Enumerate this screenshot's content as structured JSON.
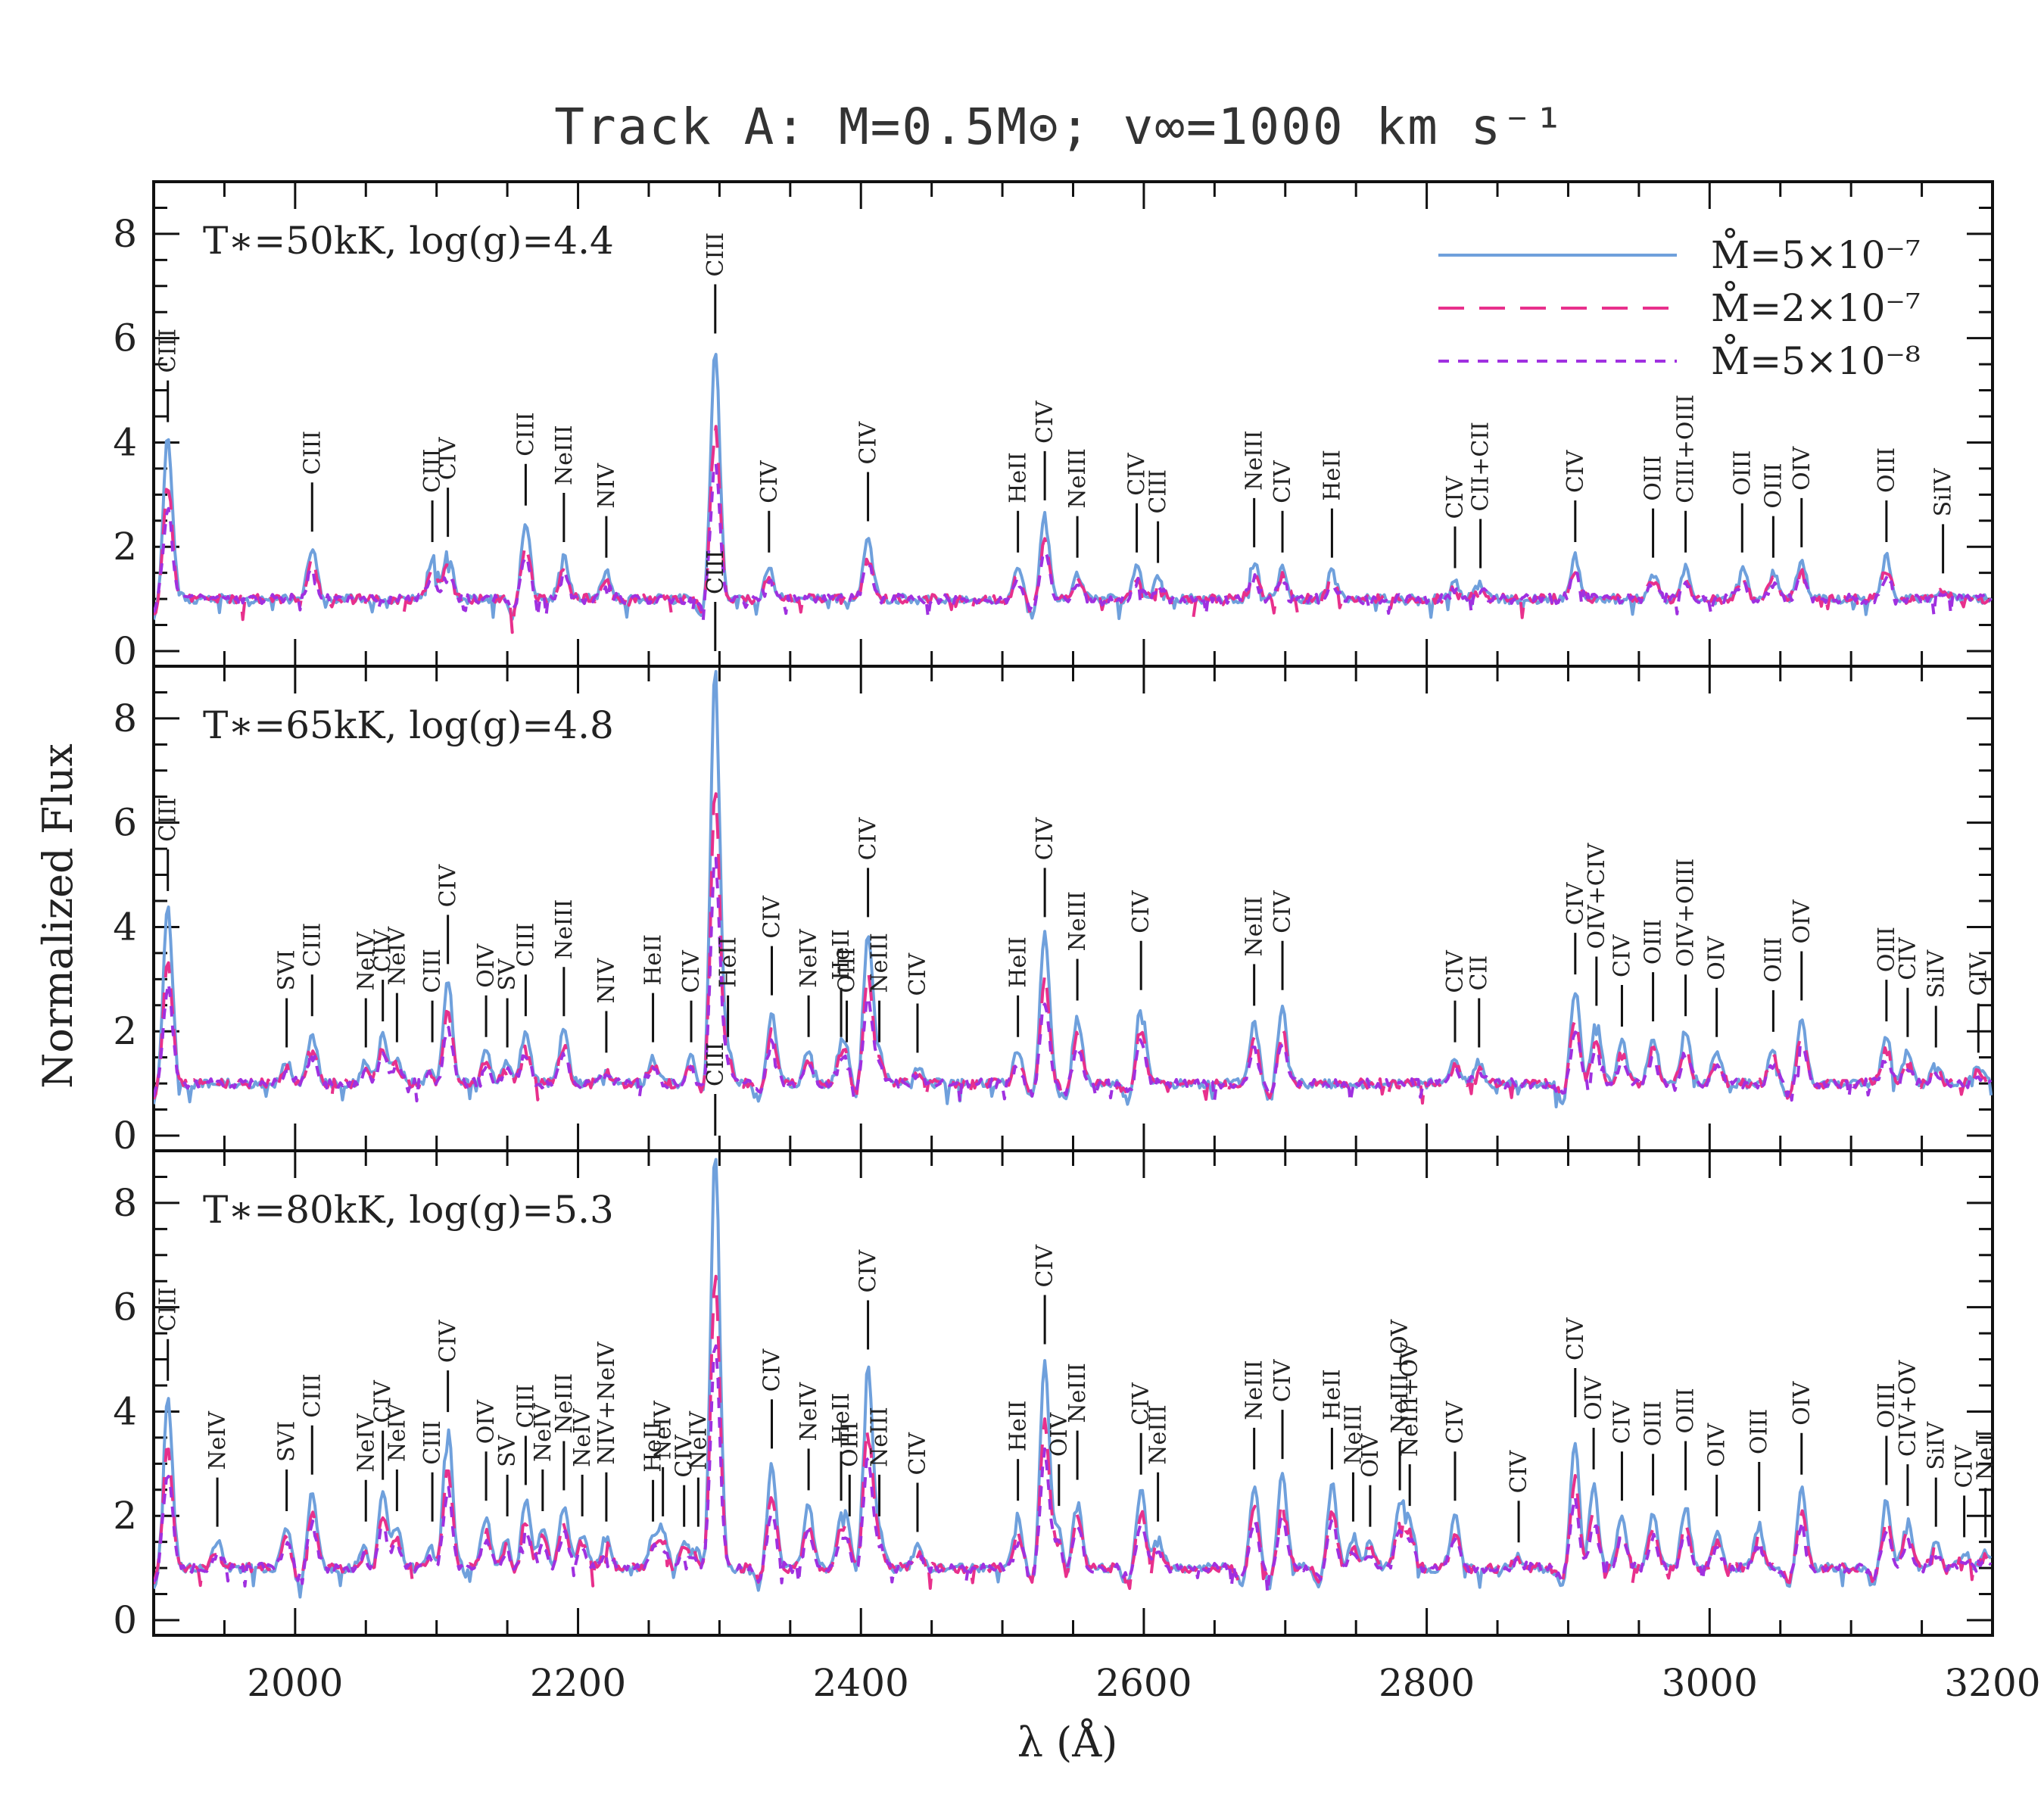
{
  "chart_data": {
    "type": "line",
    "title": "Track A: M=0.5M⊙; v∞=1000 km s⁻¹",
    "xlabel": "λ (Å)",
    "ylabel": "Normalized Flux",
    "xlim": [
      1900,
      3200
    ],
    "x_ticks": [
      "2000",
      "2200",
      "2400",
      "2600",
      "2800",
      "3000",
      "3200"
    ],
    "y_ticks": [
      "0",
      "2",
      "4",
      "6",
      "8"
    ],
    "legend": {
      "placement": "top-right",
      "entries": [
        {
          "label": "M̊=5×10⁻⁷",
          "color": "#6fa0dc",
          "dash": "solid"
        },
        {
          "label": "M̊=2×10⁻⁷",
          "color": "#e8308c",
          "dash": "long-dash"
        },
        {
          "label": "M̊=5×10⁻⁸",
          "color": "#a030e0",
          "dash": "short-dash"
        }
      ]
    },
    "panels": [
      {
        "label": "T∗=50kK, log(g)=4.4",
        "ylim": [
          0,
          9
        ],
        "continuum": 1.0,
        "lines": [
          {
            "name": "CIII",
            "x": 1910,
            "peak": 4.1
          },
          {
            "name": "CIII",
            "x": 2012,
            "peak": 2.0
          },
          {
            "name": "CIII",
            "x": 2097,
            "peak": 1.8
          },
          {
            "name": "CIV",
            "x": 2108,
            "peak": 1.9
          },
          {
            "name": "CIII",
            "x": 2163,
            "peak": 2.5
          },
          {
            "name": "NeIII",
            "x": 2190,
            "peak": 1.8
          },
          {
            "name": "NIV",
            "x": 2220,
            "peak": 1.5
          },
          {
            "name": "CIII",
            "x": 2297,
            "peak": 5.8
          },
          {
            "name": "CIV",
            "x": 2335,
            "peak": 1.6
          },
          {
            "name": "CIV",
            "x": 2405,
            "peak": 2.2
          },
          {
            "name": "HeII",
            "x": 2511,
            "peak": 1.6
          },
          {
            "name": "CIV",
            "x": 2530,
            "peak": 2.6
          },
          {
            "name": "NeIII",
            "x": 2553,
            "peak": 1.5
          },
          {
            "name": "CIV",
            "x": 2595,
            "peak": 1.6
          },
          {
            "name": "CIII",
            "x": 2610,
            "peak": 1.4
          },
          {
            "name": "NeIII",
            "x": 2678,
            "peak": 1.7
          },
          {
            "name": "CIV",
            "x": 2698,
            "peak": 1.6
          },
          {
            "name": "HeII",
            "x": 2733,
            "peak": 1.5
          },
          {
            "name": "CIV",
            "x": 2820,
            "peak": 1.3
          },
          {
            "name": "CII+CII",
            "x": 2838,
            "peak": 1.3
          },
          {
            "name": "CIV",
            "x": 2905,
            "peak": 1.8
          },
          {
            "name": "OIII",
            "x": 2960,
            "peak": 1.5
          },
          {
            "name": "CIII+OIII",
            "x": 2983,
            "peak": 1.6
          },
          {
            "name": "OIII",
            "x": 3023,
            "peak": 1.6
          },
          {
            "name": "OIII",
            "x": 3045,
            "peak": 1.5
          },
          {
            "name": "OIV",
            "x": 3065,
            "peak": 1.7
          },
          {
            "name": "OIII",
            "x": 3125,
            "peak": 1.8
          },
          {
            "name": "SiIV",
            "x": 3165,
            "peak": 1.2
          }
        ]
      },
      {
        "label": "T∗=65kK, log(g)=4.8",
        "ylim": [
          0,
          9
        ],
        "continuum": 1.0,
        "lines": [
          {
            "name": "CIII",
            "x": 1910,
            "peak": 4.4
          },
          {
            "name": "SVI",
            "x": 1994,
            "peak": 1.4
          },
          {
            "name": "CIII",
            "x": 2012,
            "peak": 2.0
          },
          {
            "name": "NeIV",
            "x": 2050,
            "peak": 1.4
          },
          {
            "name": "CIV",
            "x": 2062,
            "peak": 1.9
          },
          {
            "name": "NeIV",
            "x": 2072,
            "peak": 1.5
          },
          {
            "name": "CIII",
            "x": 2097,
            "peak": 1.5
          },
          {
            "name": "CIV",
            "x": 2108,
            "peak": 3.0
          },
          {
            "name": "OIV",
            "x": 2135,
            "peak": 1.6
          },
          {
            "name": "SV",
            "x": 2150,
            "peak": 1.4
          },
          {
            "name": "CIII",
            "x": 2163,
            "peak": 2.0
          },
          {
            "name": "NeIII",
            "x": 2190,
            "peak": 2.0
          },
          {
            "name": "NIV",
            "x": 2220,
            "peak": 1.3
          },
          {
            "name": "HeII",
            "x": 2253,
            "peak": 1.5
          },
          {
            "name": "CIV",
            "x": 2280,
            "peak": 1.5
          },
          {
            "name": "CIII",
            "x": 2297,
            "peak": 9.0
          },
          {
            "name": "HeII",
            "x": 2306,
            "peak": 1.6
          },
          {
            "name": "CIV",
            "x": 2337,
            "peak": 2.4
          },
          {
            "name": "NeIV",
            "x": 2363,
            "peak": 1.6
          },
          {
            "name": "HeII",
            "x": 2386,
            "peak": 1.6
          },
          {
            "name": "OIII",
            "x": 2390,
            "peak": 1.5
          },
          {
            "name": "CIV",
            "x": 2405,
            "peak": 3.9
          },
          {
            "name": "NeIII",
            "x": 2413,
            "peak": 1.5
          },
          {
            "name": "CIV",
            "x": 2440,
            "peak": 1.3
          },
          {
            "name": "HeII",
            "x": 2511,
            "peak": 1.6
          },
          {
            "name": "CIV",
            "x": 2530,
            "peak": 3.9
          },
          {
            "name": "NeIII",
            "x": 2553,
            "peak": 2.3
          },
          {
            "name": "CIV",
            "x": 2598,
            "peak": 2.5
          },
          {
            "name": "NeIII",
            "x": 2678,
            "peak": 2.2
          },
          {
            "name": "CIV",
            "x": 2698,
            "peak": 2.5
          },
          {
            "name": "CIV",
            "x": 2820,
            "peak": 1.5
          },
          {
            "name": "CII",
            "x": 2837,
            "peak": 1.4
          },
          {
            "name": "CIV",
            "x": 2905,
            "peak": 2.8
          },
          {
            "name": "OIV+CIV",
            "x": 2920,
            "peak": 2.2
          },
          {
            "name": "CIV",
            "x": 2938,
            "peak": 1.8
          },
          {
            "name": "OIII",
            "x": 2960,
            "peak": 1.9
          },
          {
            "name": "OIV+OIII",
            "x": 2983,
            "peak": 2.0
          },
          {
            "name": "OIV",
            "x": 3005,
            "peak": 1.6
          },
          {
            "name": "OIII",
            "x": 3045,
            "peak": 1.7
          },
          {
            "name": "OIV",
            "x": 3065,
            "peak": 2.3
          },
          {
            "name": "OIII",
            "x": 3125,
            "peak": 1.9
          },
          {
            "name": "CIV",
            "x": 3140,
            "peak": 1.6
          },
          {
            "name": "SiIV",
            "x": 3160,
            "peak": 1.4
          },
          {
            "name": "CIV",
            "x": 3190,
            "peak": 1.3
          }
        ]
      },
      {
        "label": "T∗=80kK, log(g)=5.3",
        "ylim": [
          0,
          9
        ],
        "continuum": 1.0,
        "lines": [
          {
            "name": "CIII",
            "x": 1910,
            "peak": 4.3
          },
          {
            "name": "NeIV",
            "x": 1945,
            "peak": 1.5
          },
          {
            "name": "SVI",
            "x": 1994,
            "peak": 1.8
          },
          {
            "name": "CIII",
            "x": 2012,
            "peak": 2.5
          },
          {
            "name": "NeIV",
            "x": 2050,
            "peak": 1.6
          },
          {
            "name": "CIV",
            "x": 2062,
            "peak": 2.4
          },
          {
            "name": "NeIV",
            "x": 2072,
            "peak": 1.8
          },
          {
            "name": "CIII",
            "x": 2097,
            "peak": 1.6
          },
          {
            "name": "CIV",
            "x": 2108,
            "peak": 3.7
          },
          {
            "name": "OIV",
            "x": 2135,
            "peak": 2.0
          },
          {
            "name": "SV",
            "x": 2150,
            "peak": 1.7
          },
          {
            "name": "CIII",
            "x": 2163,
            "peak": 2.3
          },
          {
            "name": "NeIV",
            "x": 2175,
            "peak": 1.8
          },
          {
            "name": "NeIII",
            "x": 2190,
            "peak": 2.2
          },
          {
            "name": "NeIV",
            "x": 2203,
            "peak": 1.7
          },
          {
            "name": "NIV+NeIV",
            "x": 2220,
            "peak": 1.6
          },
          {
            "name": "HeII",
            "x": 2253,
            "peak": 1.6
          },
          {
            "name": "NeIV",
            "x": 2260,
            "peak": 1.7
          },
          {
            "name": "CIV",
            "x": 2275,
            "peak": 1.5
          },
          {
            "name": "NeIV",
            "x": 2285,
            "peak": 1.5
          },
          {
            "name": "CIII",
            "x": 2297,
            "peak": 9.0
          },
          {
            "name": "CIV",
            "x": 2337,
            "peak": 3.0
          },
          {
            "name": "NeIV",
            "x": 2363,
            "peak": 2.2
          },
          {
            "name": "HeII",
            "x": 2386,
            "peak": 2.0
          },
          {
            "name": "OIII",
            "x": 2392,
            "peak": 1.7
          },
          {
            "name": "CIV",
            "x": 2405,
            "peak": 4.9
          },
          {
            "name": "NeIII",
            "x": 2413,
            "peak": 1.7
          },
          {
            "name": "CIV",
            "x": 2440,
            "peak": 1.4
          },
          {
            "name": "HeII",
            "x": 2511,
            "peak": 2.0
          },
          {
            "name": "CIV",
            "x": 2530,
            "peak": 5.0
          },
          {
            "name": "OIV",
            "x": 2540,
            "peak": 1.9
          },
          {
            "name": "NeIII",
            "x": 2553,
            "peak": 2.4
          },
          {
            "name": "CIV",
            "x": 2598,
            "peak": 2.5
          },
          {
            "name": "NeIII",
            "x": 2610,
            "peak": 1.6
          },
          {
            "name": "NeIII",
            "x": 2678,
            "peak": 2.6
          },
          {
            "name": "CIV",
            "x": 2698,
            "peak": 2.8
          },
          {
            "name": "HeII",
            "x": 2733,
            "peak": 2.6
          },
          {
            "name": "NeIII",
            "x": 2748,
            "peak": 1.6
          },
          {
            "name": "OIV",
            "x": 2760,
            "peak": 1.5
          },
          {
            "name": "NeIII+OV",
            "x": 2781,
            "peak": 2.2
          },
          {
            "name": "NeIII+OV",
            "x": 2788,
            "peak": 1.9
          },
          {
            "name": "CIV",
            "x": 2820,
            "peak": 2.0
          },
          {
            "name": "CIV",
            "x": 2865,
            "peak": 1.2
          },
          {
            "name": "CIV",
            "x": 2905,
            "peak": 3.6
          },
          {
            "name": "OIV",
            "x": 2918,
            "peak": 2.6
          },
          {
            "name": "CIV",
            "x": 2938,
            "peak": 2.0
          },
          {
            "name": "OIII",
            "x": 2960,
            "peak": 2.1
          },
          {
            "name": "OIII",
            "x": 2983,
            "peak": 2.2
          },
          {
            "name": "OIV",
            "x": 3005,
            "peak": 1.7
          },
          {
            "name": "OIII",
            "x": 3035,
            "peak": 1.8
          },
          {
            "name": "OIV",
            "x": 3065,
            "peak": 2.5
          },
          {
            "name": "OIII",
            "x": 3125,
            "peak": 2.3
          },
          {
            "name": "CIV+OV",
            "x": 3140,
            "peak": 1.9
          },
          {
            "name": "SiIV",
            "x": 3160,
            "peak": 1.5
          },
          {
            "name": "CIV",
            "x": 3180,
            "peak": 1.3
          },
          {
            "name": "NeII",
            "x": 3195,
            "peak": 1.3
          }
        ]
      }
    ]
  }
}
